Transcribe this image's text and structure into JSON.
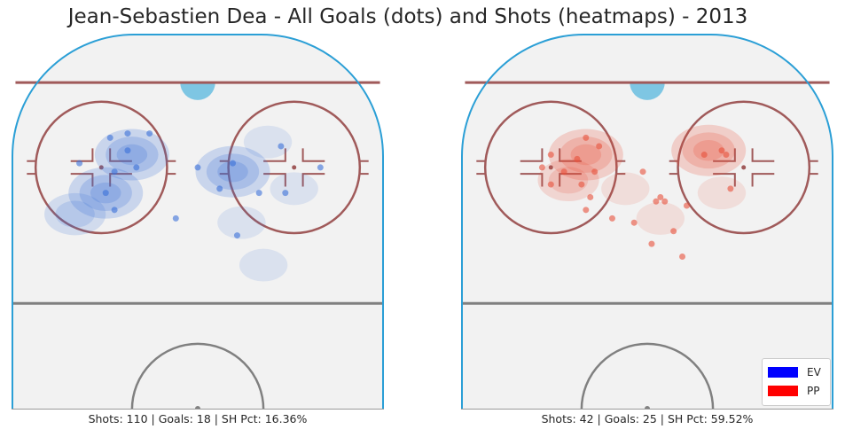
{
  "title": "Jean-Sebastien Dea - All Goals (dots) and Shots (heatmaps) - 2013",
  "colors": {
    "ev": "#0000ff",
    "pp": "#ff0000",
    "rink_line": "#a05a5a",
    "boards": "#2b9fd6",
    "ice": "#f2f2f2",
    "crease": "#7ec6e3",
    "center_line": "#808080"
  },
  "legend": {
    "items": [
      {
        "label": "EV",
        "color": "#0000ff"
      },
      {
        "label": "PP",
        "color": "#ff0000"
      }
    ],
    "placement": "lower-right"
  },
  "chart_data": [
    {
      "type": "heatmap",
      "panel": "left",
      "situation": "EV",
      "caption": "Shots: 110 | Goals: 18 | SH Pct: 16.36%",
      "goals": [
        [
          -20,
          64
        ],
        [
          -16,
          65
        ],
        [
          -11,
          65
        ],
        [
          -16,
          61
        ],
        [
          -27,
          58
        ],
        [
          -14,
          57
        ],
        [
          -19,
          56
        ],
        [
          0,
          57
        ],
        [
          8,
          58
        ],
        [
          19,
          62
        ],
        [
          28,
          57
        ],
        [
          5,
          52
        ],
        [
          14,
          51
        ],
        [
          20,
          51
        ],
        [
          -21,
          51
        ],
        [
          -19,
          47
        ],
        [
          -5,
          45
        ],
        [
          9,
          41
        ]
      ],
      "shot_density": [
        {
          "x": -15,
          "y": 60,
          "level": 3
        },
        {
          "x": 8,
          "y": 56,
          "level": 3
        },
        {
          "x": -21,
          "y": 51,
          "level": 3
        },
        {
          "x": -28,
          "y": 46,
          "level": 2
        },
        {
          "x": 22,
          "y": 52,
          "level": 1
        },
        {
          "x": 16,
          "y": 63,
          "level": 1
        },
        {
          "x": 10,
          "y": 44,
          "level": 1
        },
        {
          "x": 15,
          "y": 34,
          "level": 1
        }
      ]
    },
    {
      "type": "heatmap",
      "panel": "right",
      "situation": "PP",
      "caption": "Shots: 42 | Goals: 25 | SH Pct: 59.52%",
      "goals": [
        [
          -22,
          60
        ],
        [
          -14,
          64
        ],
        [
          -11,
          62
        ],
        [
          -24,
          57
        ],
        [
          -19,
          56
        ],
        [
          -16,
          59
        ],
        [
          -12,
          56
        ],
        [
          -22,
          53
        ],
        [
          -15,
          53
        ],
        [
          -13,
          50
        ],
        [
          -1,
          56
        ],
        [
          3,
          50
        ],
        [
          9,
          48
        ],
        [
          13,
          60
        ],
        [
          17,
          61
        ],
        [
          18,
          60
        ],
        [
          -14,
          47
        ],
        [
          -8,
          45
        ],
        [
          -3,
          44
        ],
        [
          2,
          49
        ],
        [
          4,
          49
        ],
        [
          6,
          42
        ],
        [
          1,
          39
        ],
        [
          8,
          36
        ],
        [
          19,
          52
        ]
      ],
      "shot_density": [
        {
          "x": -14,
          "y": 60,
          "level": 3
        },
        {
          "x": 14,
          "y": 61,
          "level": 3
        },
        {
          "x": -18,
          "y": 54,
          "level": 2
        },
        {
          "x": -5,
          "y": 52,
          "level": 1
        },
        {
          "x": 3,
          "y": 45,
          "level": 1
        },
        {
          "x": 17,
          "y": 51,
          "level": 1
        }
      ]
    }
  ]
}
